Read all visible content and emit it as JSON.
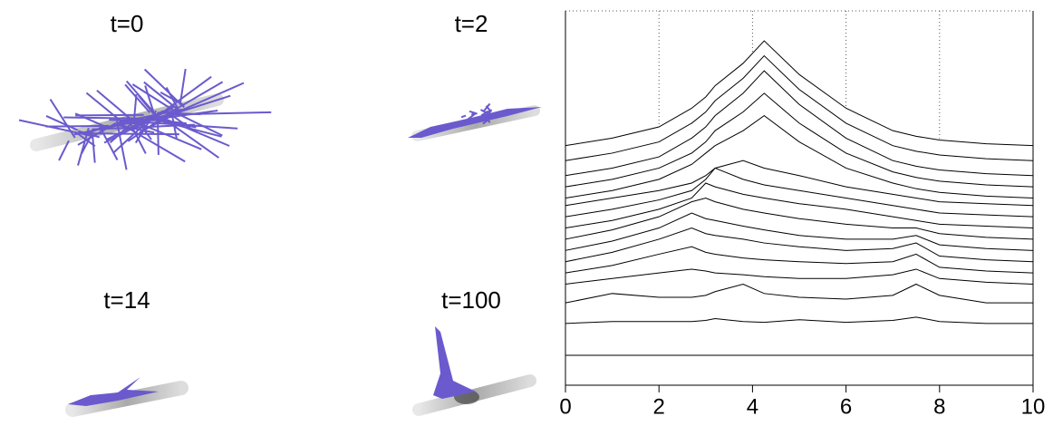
{
  "panels": [
    {
      "label": "t=0"
    },
    {
      "label": "t=2"
    },
    {
      "label": "t=14"
    },
    {
      "label": "t=100"
    }
  ],
  "chart_data": {
    "type": "line",
    "color": "#000000",
    "grid": true,
    "x": [
      0,
      1,
      2,
      2.7,
      3,
      3.2,
      3.8,
      4.25,
      5,
      6,
      7,
      7.5,
      8,
      9,
      10
    ],
    "xlim": [
      0,
      10
    ],
    "xticks": [
      0,
      2,
      4,
      6,
      8,
      10
    ],
    "ylim": [
      0,
      100
    ],
    "series": [
      {
        "values": [
          8,
          8,
          8,
          8,
          8,
          8,
          8,
          8,
          8,
          8,
          8,
          8,
          8,
          8,
          8
        ]
      },
      {
        "values": [
          16.5,
          17,
          17,
          17,
          17.3,
          17.8,
          17,
          16.8,
          17.5,
          16.8,
          17.3,
          18.2,
          17,
          16.5,
          16.5
        ]
      },
      {
        "values": [
          22,
          24.5,
          23.5,
          23.5,
          24,
          25,
          27,
          24.5,
          23.5,
          23,
          24,
          27,
          24,
          22,
          22
        ]
      },
      {
        "values": [
          27,
          28.5,
          30,
          31,
          30.5,
          30,
          29.5,
          29,
          28.5,
          28.5,
          29.5,
          31,
          28.5,
          27.5,
          27
        ]
      },
      {
        "values": [
          30,
          32,
          35,
          37,
          35.5,
          35,
          34,
          33.5,
          33,
          32.5,
          33,
          35,
          31.5,
          30.5,
          30
        ]
      },
      {
        "values": [
          33,
          35.5,
          39,
          42,
          40.5,
          40,
          39,
          38,
          37,
          36,
          36.5,
          38,
          34.5,
          33.5,
          33
        ]
      },
      {
        "values": [
          36,
          38.5,
          42,
          46,
          44.5,
          44,
          42.5,
          41.5,
          40,
          39,
          39,
          40,
          37.5,
          36.5,
          36
        ]
      },
      {
        "values": [
          39,
          41.5,
          45,
          49,
          50,
          49,
          47,
          46,
          44.5,
          43,
          42,
          42,
          40.5,
          39.5,
          39
        ]
      },
      {
        "values": [
          42,
          44,
          47,
          50,
          54,
          53,
          51,
          50,
          48.5,
          47,
          45,
          44,
          43,
          42.5,
          42
        ]
      },
      {
        "values": [
          45,
          47,
          49.5,
          52,
          55,
          58,
          55,
          53.5,
          52,
          50,
          48,
          47,
          46,
          45.5,
          45
        ]
      },
      {
        "values": [
          48,
          50,
          52,
          54,
          56,
          58,
          60,
          58,
          56,
          53,
          51,
          50,
          49,
          48.5,
          48
        ]
      },
      {
        "values": [
          50,
          52,
          55,
          59,
          62,
          64,
          68,
          72,
          65,
          58,
          54,
          52.5,
          51.5,
          50.5,
          50
        ]
      },
      {
        "values": [
          53,
          55,
          58,
          62,
          65,
          68,
          73,
          78,
          70,
          62,
          57,
          55.5,
          54.5,
          53.5,
          53
        ]
      },
      {
        "values": [
          56,
          58,
          61,
          66,
          69,
          72,
          78,
          84,
          75,
          66,
          60,
          58.5,
          57.5,
          56.5,
          56
        ]
      },
      {
        "values": [
          60,
          62,
          65,
          70,
          73,
          76,
          82,
          88,
          79,
          70,
          64,
          62.5,
          61.5,
          60.5,
          60
        ]
      },
      {
        "values": [
          64,
          66,
          69,
          74,
          77,
          80,
          86,
          92,
          83,
          74,
          68,
          66.5,
          65.5,
          64.5,
          64
        ]
      }
    ]
  }
}
